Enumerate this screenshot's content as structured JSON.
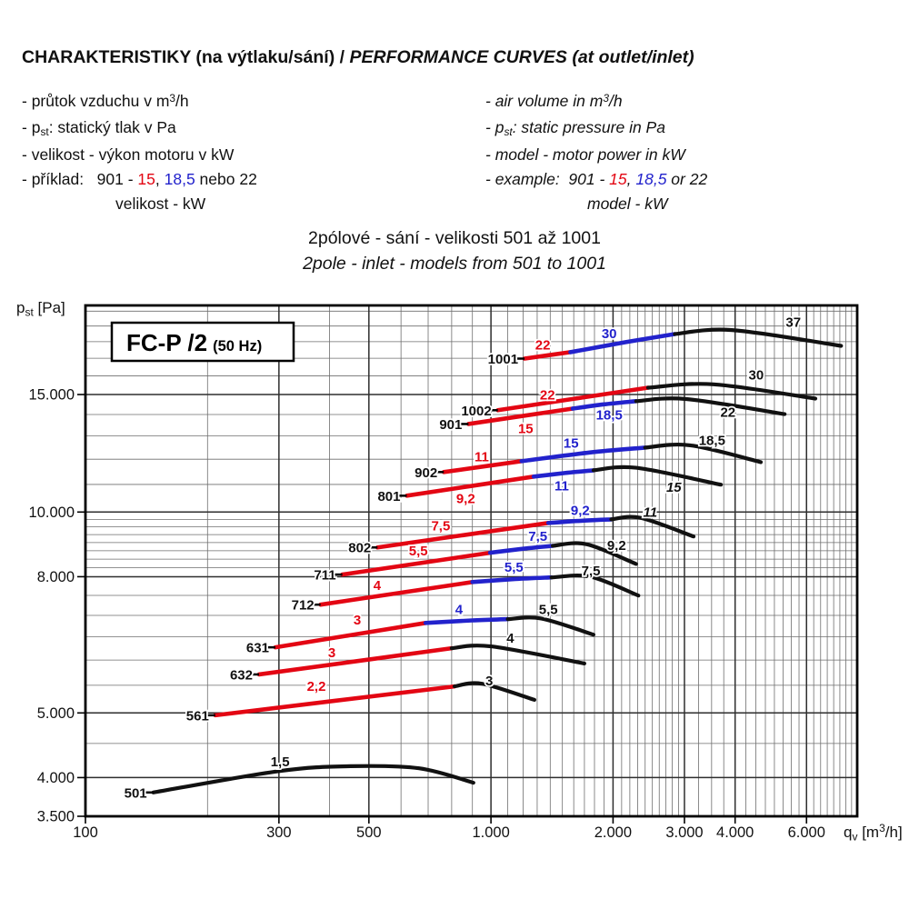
{
  "header": {
    "czech": "CHARAKTERISTIKY (na výtlaku/sání)",
    "separator": " / ",
    "english": "PERFORMANCE CURVES (at outlet/inlet)"
  },
  "legend_czech": {
    "items": [
      {
        "runs": [
          {
            "t": "- průtok vzduchu v m"
          },
          {
            "t": "3",
            "sup": true
          },
          {
            "t": "/h"
          }
        ]
      },
      {
        "runs": [
          {
            "t": "- p"
          },
          {
            "t": "st",
            "sub": true
          },
          {
            "t": ": statický tlak v Pa"
          }
        ]
      },
      {
        "runs": [
          {
            "t": "- velikost - výkon motoru v kW"
          }
        ]
      },
      {
        "runs": [
          {
            "t": "- příklad:   901 - "
          },
          {
            "t": "15",
            "color": "red"
          },
          {
            "t": ", "
          },
          {
            "t": "18,5",
            "color": "blue"
          },
          {
            "t": " nebo 22"
          }
        ]
      },
      {
        "indent": true,
        "runs": [
          {
            "t": "velikost - kW"
          }
        ]
      }
    ]
  },
  "legend_english": {
    "items": [
      {
        "runs": [
          {
            "t": "- air volume in m"
          },
          {
            "t": "3",
            "sup": true
          },
          {
            "t": "/h"
          }
        ]
      },
      {
        "runs": [
          {
            "t": "- p"
          },
          {
            "t": "st",
            "sub": true
          },
          {
            "t": ": static pressure in Pa"
          }
        ]
      },
      {
        "runs": [
          {
            "t": "- model - motor power in kW"
          }
        ]
      },
      {
        "runs": [
          {
            "t": "- example:  901 - "
          },
          {
            "t": "15",
            "color": "red"
          },
          {
            "t": ", "
          },
          {
            "t": "18,5",
            "color": "blue"
          },
          {
            "t": " or 22"
          }
        ]
      },
      {
        "indent": true,
        "runs": [
          {
            "t": "model - kW"
          }
        ]
      }
    ]
  },
  "subtitle": {
    "czech": "2pólové - sání - velikosti 501 až 1001",
    "english": "2pole - inlet - models from 501 to 1001"
  },
  "chart_data": {
    "type": "line",
    "box_label": {
      "main": "FC-P /2",
      "suffix": "(50 Hz)"
    },
    "ylabel": {
      "pre": "p",
      "sub": "st",
      "post": " [Pa]"
    },
    "xlabel": {
      "pre": "q",
      "sub": "v",
      "mid": " [m",
      "sup": "3",
      "post": "/h]"
    },
    "xlim": [
      100,
      8000
    ],
    "ylim": [
      3500,
      20400
    ],
    "x_log": true,
    "y_log": true,
    "grid": {
      "x_minor": [
        [
          100,
          1000,
          100
        ],
        [
          1000,
          3000,
          100
        ],
        [
          3000,
          8000,
          250
        ]
      ],
      "y_minor": [
        [
          3500,
          8000,
          500
        ],
        [
          8000,
          10000,
          250
        ],
        [
          10000,
          20000,
          1000
        ]
      ],
      "x_major": [
        100,
        300,
        500,
        1000,
        2000,
        3000,
        4000,
        6000
      ],
      "y_major": [
        3500,
        4000,
        5000,
        8000,
        10000,
        15000
      ]
    },
    "x_ticks": [
      {
        "v": 100,
        "label": "100"
      },
      {
        "v": 300,
        "label": "300"
      },
      {
        "v": 500,
        "label": "500"
      },
      {
        "v": 1000,
        "label": "1.000"
      },
      {
        "v": 2000,
        "label": "2.000"
      },
      {
        "v": 3000,
        "label": "3.000"
      },
      {
        "v": 4000,
        "label": "4.000"
      },
      {
        "v": 6000,
        "label": "6.000"
      }
    ],
    "y_ticks": [
      {
        "v": 3500,
        "label": "3.500"
      },
      {
        "v": 4000,
        "label": "4.000"
      },
      {
        "v": 5000,
        "label": "5.000"
      },
      {
        "v": 8000,
        "label": "8.000"
      },
      {
        "v": 10000,
        "label": "10.000"
      },
      {
        "v": 15000,
        "label": "15.000"
      }
    ],
    "colors": {
      "red": "#e30613",
      "blue": "#2222cc",
      "black": "#111111"
    },
    "series": [
      {
        "model": "501",
        "segments": [
          {
            "power": "1,5",
            "color": "black",
            "points": [
              [
                147,
                3800
              ],
              [
                300,
                4090
              ],
              [
                450,
                4160
              ],
              [
                665,
                4130
              ],
              [
                905,
                3930
              ]
            ],
            "label_at": [
              302,
              4225
            ]
          }
        ]
      },
      {
        "model": "561",
        "segments": [
          {
            "power": "2,2",
            "color": "red",
            "points": [
              [
                209,
                4960
              ],
              [
                813,
                5480
              ]
            ],
            "label_at": [
              371,
              5480
            ]
          },
          {
            "power": "3",
            "color": "black",
            "points": [
              [
                813,
                5480
              ],
              [
                950,
                5530
              ],
              [
                1280,
                5230
              ]
            ],
            "label_at": [
              990,
              5583
            ]
          }
        ]
      },
      {
        "model": "632",
        "segments": [
          {
            "power": "3",
            "color": "red",
            "points": [
              [
                268,
                5710
              ],
              [
                800,
                6250
              ]
            ],
            "label_at": [
              405,
              6157
            ]
          },
          {
            "power": "4",
            "color": "black",
            "points": [
              [
                800,
                6250
              ],
              [
                1000,
                6290
              ],
              [
                1700,
                5930
              ]
            ],
            "label_at": [
              1116,
              6475
            ]
          }
        ]
      },
      {
        "model": "631",
        "segments": [
          {
            "power": "3",
            "color": "red",
            "points": [
              [
                294,
                6270
              ],
              [
                690,
                6820
              ]
            ],
            "label_at": [
              468,
              6890
            ]
          },
          {
            "power": "4",
            "color": "blue",
            "points": [
              [
                690,
                6820
              ],
              [
                900,
                6880
              ],
              [
                1100,
                6910
              ]
            ],
            "label_at": [
              834,
              7150
            ]
          },
          {
            "power": "5,5",
            "color": "black",
            "points": [
              [
                1100,
                6910
              ],
              [
                1330,
                6925
              ],
              [
                1790,
                6550
              ]
            ],
            "label_at": [
              1385,
              7150
            ]
          }
        ]
      },
      {
        "model": "712",
        "segments": [
          {
            "power": "4",
            "color": "red",
            "points": [
              [
                380,
                7265
              ],
              [
                900,
                7855
              ]
            ],
            "label_at": [
              524,
              7760
            ]
          },
          {
            "power": "5,5",
            "color": "blue",
            "points": [
              [
                900,
                7855
              ],
              [
                1150,
                7935
              ],
              [
                1410,
                7980
              ]
            ],
            "label_at": [
              1139,
              8260
            ]
          },
          {
            "power": "7,5",
            "color": "black",
            "points": [
              [
                1410,
                7980
              ],
              [
                1760,
                8000
              ],
              [
                2310,
                7495
              ]
            ],
            "label_at": [
              1764,
              8157
            ]
          }
        ]
      },
      {
        "model": "711",
        "segments": [
          {
            "power": "5,5",
            "color": "red",
            "points": [
              [
                430,
                8060
              ],
              [
                995,
                8690
              ]
            ],
            "label_at": [
              662,
              8740
            ]
          },
          {
            "power": "7,5",
            "color": "blue",
            "points": [
              [
                995,
                8690
              ],
              [
                1200,
                8810
              ],
              [
                1420,
                8900
              ]
            ],
            "label_at": [
              1305,
              9190
            ]
          },
          {
            "power": "9,2",
            "color": "black",
            "points": [
              [
                1420,
                8900
              ],
              [
                1720,
                8950
              ],
              [
                2280,
                8360
              ]
            ],
            "label_at": [
              2040,
              8906
            ]
          }
        ]
      },
      {
        "model": "802",
        "segments": [
          {
            "power": "7,5",
            "color": "red",
            "points": [
              [
                525,
                8850
              ],
              [
                1385,
                9630
              ]
            ],
            "label_at": [
              752,
              9540
            ]
          },
          {
            "power": "9,2",
            "color": "blue",
            "points": [
              [
                1385,
                9630
              ],
              [
                1700,
                9710
              ],
              [
                1980,
                9750
              ]
            ],
            "label_at": [
              1660,
              10060
            ]
          },
          {
            "power": "11",
            "color": "black",
            "italic": true,
            "points": [
              [
                1980,
                9750
              ],
              [
                2340,
                9800
              ],
              [
                3160,
                9190
              ]
            ],
            "label_at": [
              2470,
              10000
            ]
          }
        ]
      },
      {
        "model": "801",
        "segments": [
          {
            "power": "9,2",
            "color": "red",
            "points": [
              [
                620,
                10580
              ],
              [
                1275,
                11300
              ]
            ],
            "label_at": [
              866,
              10480
            ]
          },
          {
            "power": "11",
            "color": "blue",
            "points": [
              [
                1275,
                11300
              ],
              [
                1520,
                11440
              ],
              [
                1790,
                11550
              ]
            ],
            "label_at": [
              1494,
              10950
            ]
          },
          {
            "power": "15",
            "color": "black",
            "italic": true,
            "points": [
              [
                1790,
                11550
              ],
              [
                2280,
                11650
              ],
              [
                3690,
                10990
              ]
            ],
            "label_at": [
              2825,
              10900
            ]
          }
        ]
      },
      {
        "model": "902",
        "segments": [
          {
            "power": "11",
            "color": "red",
            "points": [
              [
                765,
                11480
              ],
              [
                1190,
                11920
              ]
            ],
            "label_at": [
              949,
              12110
            ]
          },
          {
            "power": "15",
            "color": "blue",
            "points": [
              [
                1190,
                11920
              ],
              [
                1750,
                12280
              ],
              [
                2400,
                12490
              ]
            ],
            "label_at": [
              1576,
              12690
            ]
          },
          {
            "power": "18,5",
            "color": "black",
            "points": [
              [
                2400,
                12490
              ],
              [
                3100,
                12590
              ],
              [
                4630,
                11880
              ]
            ],
            "label_at": [
              3509,
              12810
            ]
          }
        ]
      },
      {
        "model": "901",
        "segments": [
          {
            "power": "15",
            "color": "red",
            "points": [
              [
                880,
                13550
              ],
              [
                1590,
                14290
              ]
            ],
            "label_at": [
              1218,
              13340
            ]
          },
          {
            "power": "18,5",
            "color": "blue",
            "points": [
              [
                1590,
                14290
              ],
              [
                1900,
                14500
              ],
              [
                2280,
                14660
              ]
            ],
            "label_at": [
              1957,
              13980
            ]
          },
          {
            "power": "22",
            "color": "black",
            "points": [
              [
                2280,
                14660
              ],
              [
                3030,
                14770
              ],
              [
                5300,
                14020
              ]
            ],
            "label_at": [
              3840,
              14120
            ]
          }
        ]
      },
      {
        "model": "1002",
        "segments": [
          {
            "power": "22",
            "color": "red",
            "points": [
              [
                1040,
                14210
              ],
              [
                2440,
                15360
              ]
            ],
            "label_at": [
              1378,
              14980
            ]
          },
          {
            "power": "30",
            "color": "black",
            "points": [
              [
                2440,
                15360
              ],
              [
                3540,
                15540
              ],
              [
                6310,
                14790
              ]
            ],
            "label_at": [
              4508,
              16050
            ]
          }
        ]
      },
      {
        "model": "1001",
        "segments": [
          {
            "power": "22",
            "color": "red",
            "points": [
              [
                1210,
                16980
              ],
              [
                1570,
                17360
              ]
            ],
            "label_at": [
              1342,
              17790
            ]
          },
          {
            "power": "30",
            "color": "blue",
            "points": [
              [
                1570,
                17360
              ],
              [
                2150,
                17970
              ],
              [
                2840,
                18480
              ]
            ],
            "label_at": [
              1957,
              18520
            ]
          },
          {
            "power": "37",
            "color": "black",
            "points": [
              [
                2840,
                18480
              ],
              [
                3930,
                18740
              ],
              [
                7300,
                17740
              ]
            ],
            "label_at": [
              5566,
              19240
            ]
          }
        ]
      }
    ]
  }
}
